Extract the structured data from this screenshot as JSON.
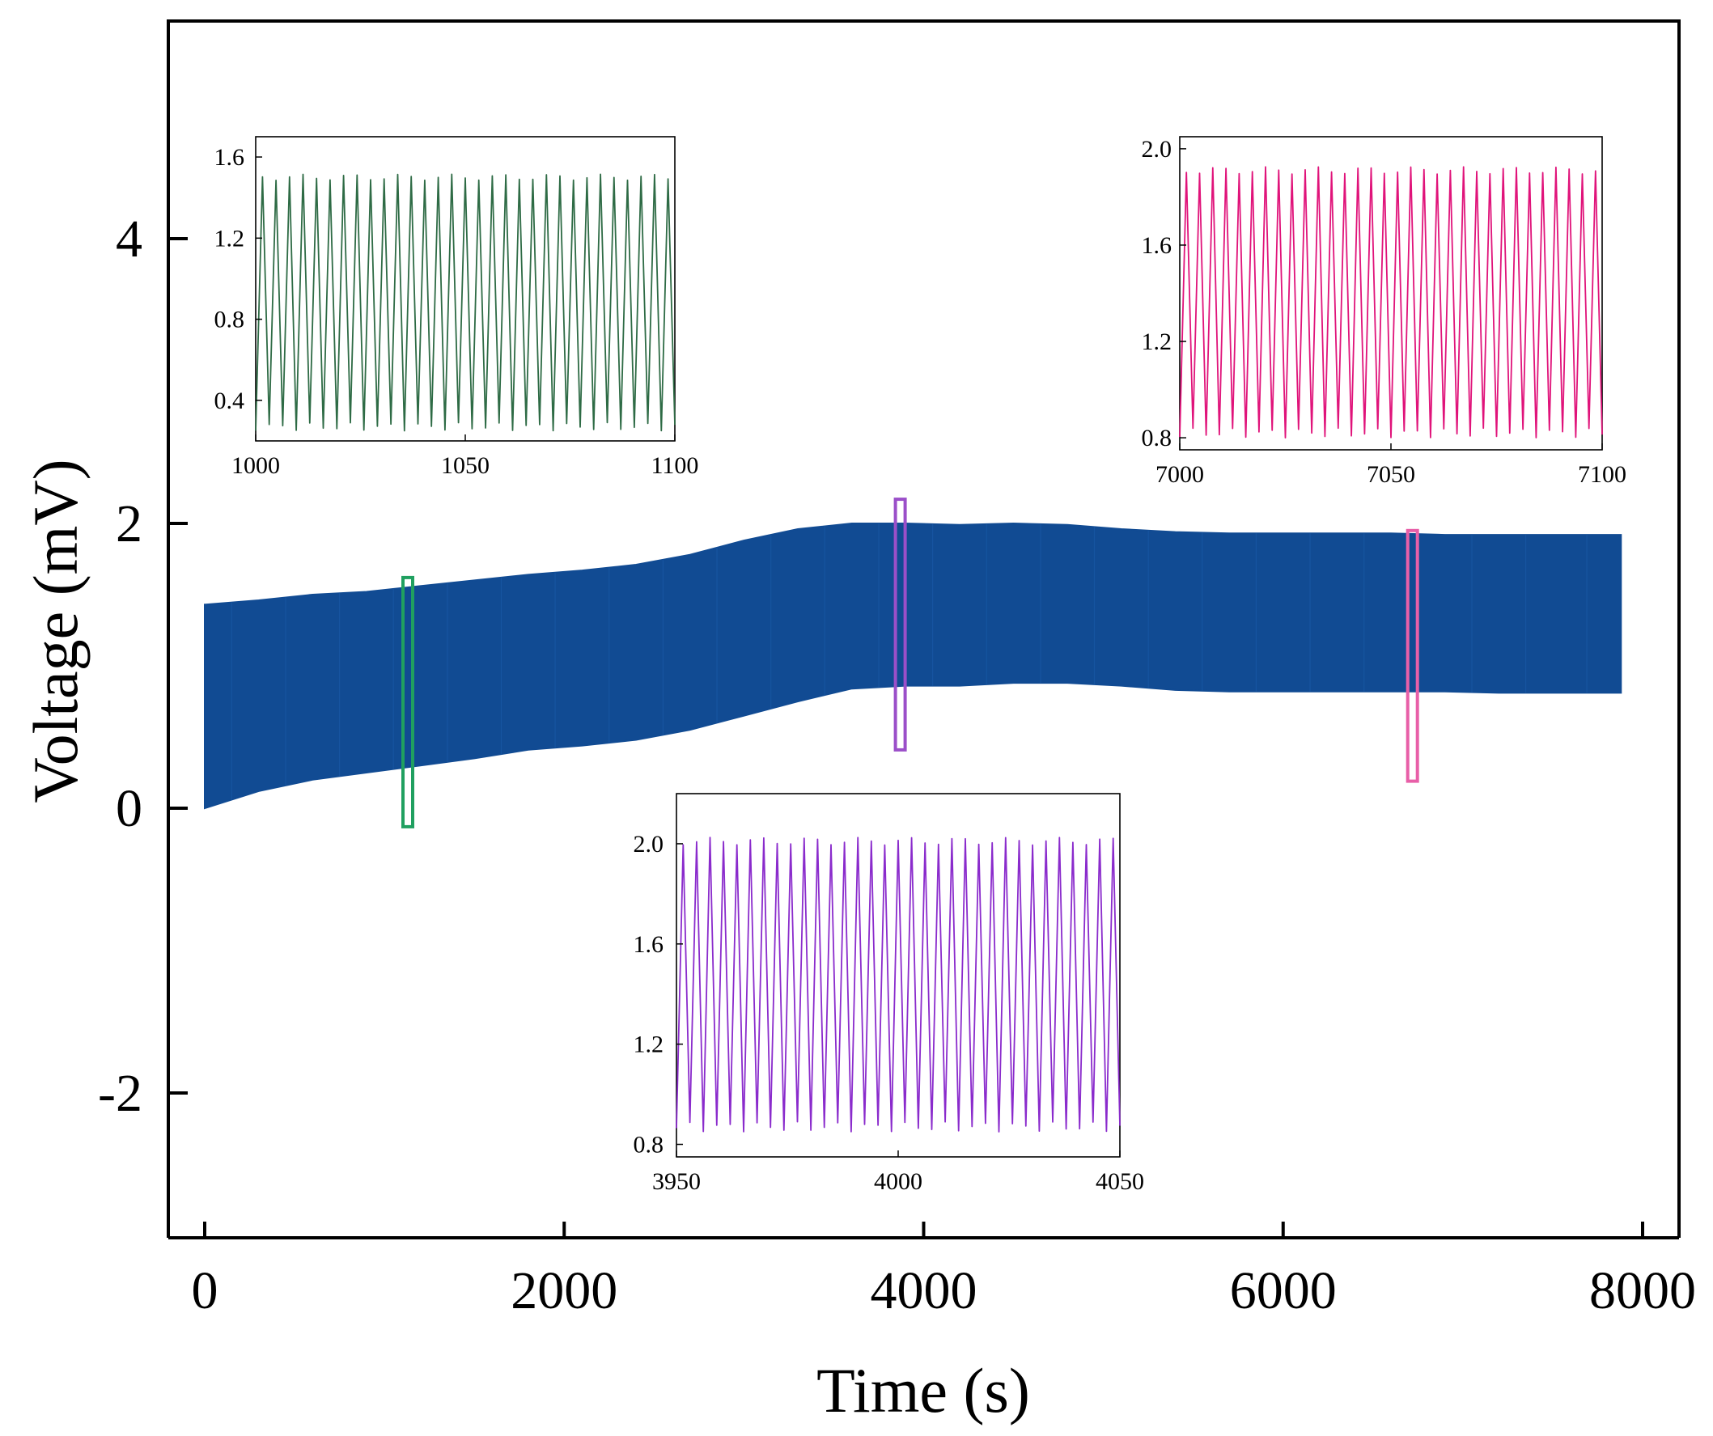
{
  "chart_data": {
    "type": "line",
    "title": "",
    "xlabel": "Time (s)",
    "ylabel": "Voltage (mV)",
    "xlim": [
      -100,
      8100
    ],
    "ylim": [
      -3,
      5.5
    ],
    "xticks": [
      0,
      2000,
      4000,
      6000,
      8000
    ],
    "xtick_labels": [
      "0",
      "2000",
      "4000",
      "6000",
      "8000"
    ],
    "yticks": [
      -2,
      0,
      2,
      4
    ],
    "ytick_labels": [
      "-2",
      "0",
      "2",
      "4"
    ],
    "grid": false,
    "series": [
      {
        "name": "voltage-envelope",
        "color": "#114B93",
        "style": "dense oscillation band",
        "time": [
          0,
          300,
          600,
          900,
          1200,
          1500,
          1800,
          2100,
          2400,
          2700,
          3000,
          3300,
          3600,
          3900,
          4200,
          4500,
          4800,
          5100,
          5400,
          5700,
          6000,
          6300,
          6600,
          6900,
          7200,
          7500,
          7880
        ],
        "upper": [
          1.43,
          1.46,
          1.5,
          1.52,
          1.56,
          1.6,
          1.64,
          1.67,
          1.71,
          1.78,
          1.88,
          1.96,
          2.0,
          2.0,
          1.99,
          2.0,
          1.99,
          1.96,
          1.94,
          1.93,
          1.93,
          1.93,
          1.93,
          1.92,
          1.92,
          1.92,
          1.92
        ],
        "lower": [
          0.0,
          0.12,
          0.2,
          0.25,
          0.3,
          0.35,
          0.41,
          0.44,
          0.48,
          0.55,
          0.65,
          0.75,
          0.84,
          0.86,
          0.86,
          0.88,
          0.88,
          0.86,
          0.83,
          0.82,
          0.82,
          0.82,
          0.82,
          0.82,
          0.81,
          0.81,
          0.81
        ]
      }
    ],
    "highlight_boxes": [
      {
        "name": "green-window",
        "color": "#20A060",
        "x_center": 1130,
        "y_range": [
          -0.13,
          1.62
        ]
      },
      {
        "name": "purple-window",
        "color": "#9B4FC9",
        "x_center": 3870,
        "y_range": [
          0.41,
          2.17
        ]
      },
      {
        "name": "pink-window",
        "color": "#E85FA8",
        "x_center": 6720,
        "y_range": [
          0.19,
          1.95
        ]
      }
    ],
    "insets": [
      {
        "name": "inset-green",
        "color": "#2E6B45",
        "xlim": [
          1000,
          1100
        ],
        "ylim": [
          0.2,
          1.7
        ],
        "xticks": [
          1000,
          1050,
          1100
        ],
        "xtick_labels": [
          "1000",
          "1050",
          "1100"
        ],
        "yticks": [
          0.4,
          0.8,
          1.2,
          1.6
        ],
        "ytick_labels": [
          "0.4",
          "0.8",
          "1.2",
          "1.6"
        ],
        "peak": 1.5,
        "trough": 0.27,
        "cycles": 31
      },
      {
        "name": "inset-pink",
        "color": "#E0137A",
        "xlim": [
          7000,
          7100
        ],
        "ylim": [
          0.75,
          2.05
        ],
        "xticks": [
          7000,
          7050,
          7100
        ],
        "xtick_labels": [
          "7000",
          "7050",
          "7100"
        ],
        "yticks": [
          0.8,
          1.2,
          1.6,
          2.0
        ],
        "ytick_labels": [
          "0.8",
          "1.2",
          "1.6",
          "2.0"
        ],
        "peak": 1.91,
        "trough": 0.82,
        "cycles": 32
      },
      {
        "name": "inset-purple",
        "color": "#8A2BCC",
        "xlim": [
          3950,
          4050
        ],
        "ylim": [
          0.75,
          2.2
        ],
        "xticks": [
          3950,
          4000,
          4050
        ],
        "xtick_labels": [
          "3950",
          "4000",
          "4050"
        ],
        "yticks": [
          0.8,
          1.2,
          1.6,
          2.0
        ],
        "ytick_labels": [
          "0.8",
          "1.2",
          "1.6",
          "2.0"
        ],
        "peak": 2.01,
        "trough": 0.87,
        "cycles": 33
      }
    ]
  }
}
